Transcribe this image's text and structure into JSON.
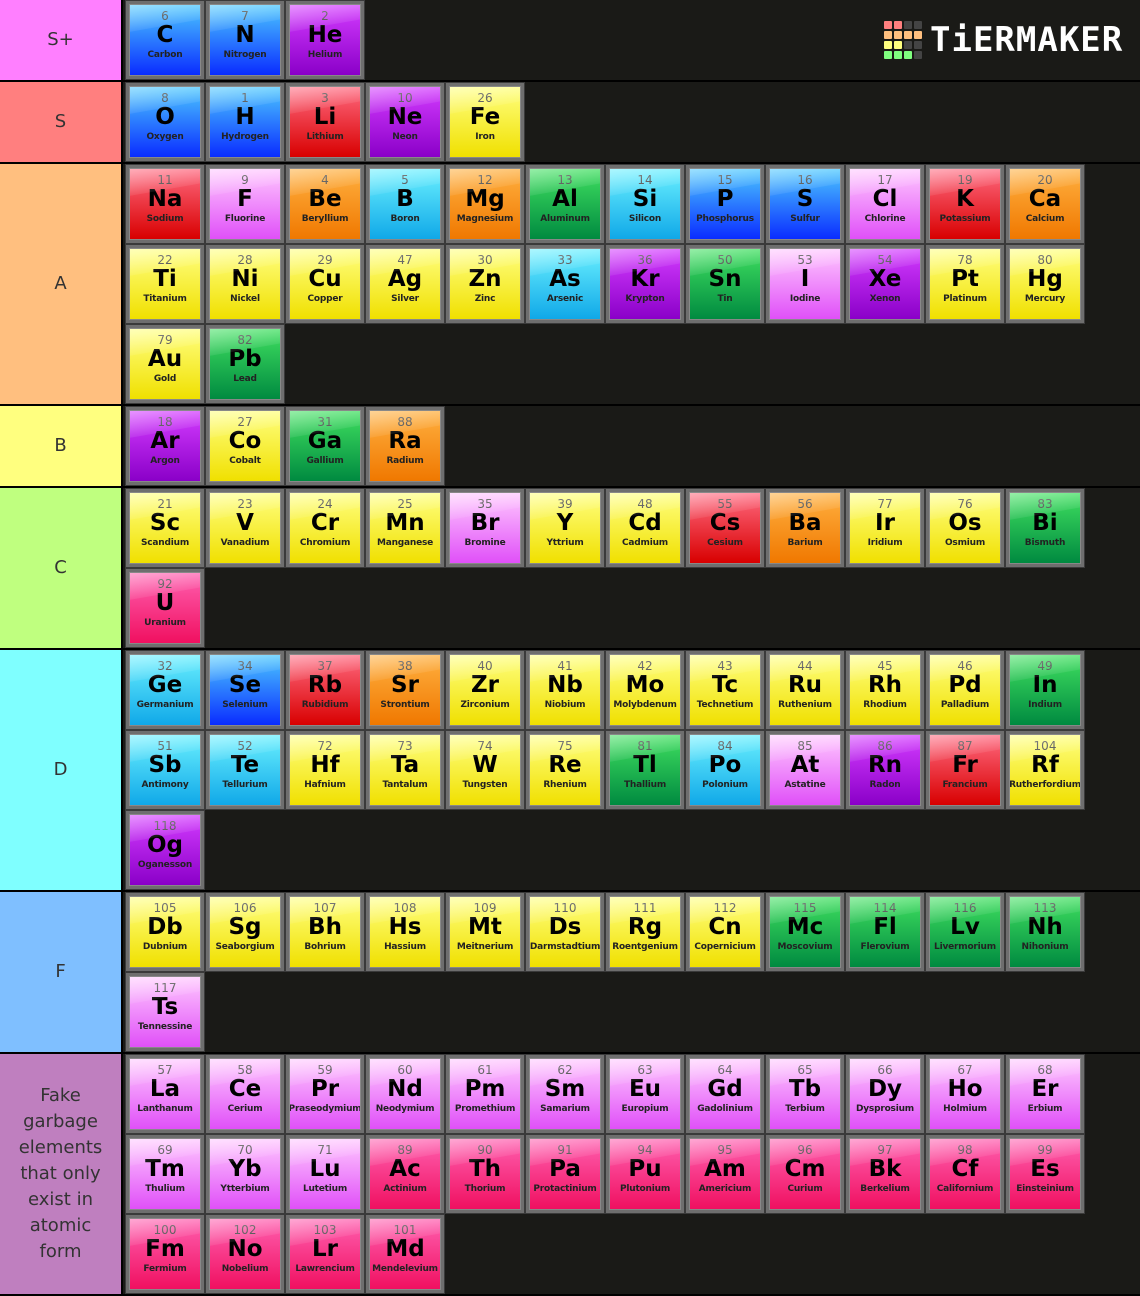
{
  "logo": {
    "text": "TiERMAKER",
    "grid_colors": [
      "#ff7f7f",
      "#ff7f7f",
      "#444",
      "#444",
      "#ffbf7f",
      "#ffbf7f",
      "#ffbf7f",
      "#ffbf7f",
      "#ffff7f",
      "#ffff7f",
      "#444",
      "#444",
      "#7fff7f",
      "#7fff7f",
      "#7fff7f",
      "#444"
    ]
  },
  "colors": {
    "blue": [
      "#4cc8ff",
      "#0a2cff"
    ],
    "purple": [
      "#d43cff",
      "#8a00c8"
    ],
    "red": [
      "#ff6a80",
      "#d80000"
    ],
    "yellow": [
      "#ffff80",
      "#f0e000"
    ],
    "orange": [
      "#ffb040",
      "#f07800"
    ],
    "cyan": [
      "#6af0ff",
      "#10a8e8"
    ],
    "green": [
      "#40e060",
      "#008a40"
    ],
    "pink": [
      "#ffc8ff",
      "#e050f8"
    ],
    "hot": [
      "#ff60b0",
      "#f01060"
    ]
  },
  "tiers": [
    {
      "label": "S+",
      "color": "#ff7fff",
      "elements": [
        [
          "6",
          "C",
          "Carbon",
          "blue"
        ],
        [
          "7",
          "N",
          "Nitrogen",
          "blue"
        ],
        [
          "2",
          "He",
          "Helium",
          "purple"
        ]
      ]
    },
    {
      "label": "S",
      "color": "#ff7f7f",
      "elements": [
        [
          "8",
          "O",
          "Oxygen",
          "blue"
        ],
        [
          "1",
          "H",
          "Hydrogen",
          "blue"
        ],
        [
          "3",
          "Li",
          "Lithium",
          "red"
        ],
        [
          "10",
          "Ne",
          "Neon",
          "purple"
        ],
        [
          "26",
          "Fe",
          "Iron",
          "yellow"
        ]
      ]
    },
    {
      "label": "A",
      "color": "#ffbf7f",
      "elements": [
        [
          "11",
          "Na",
          "Sodium",
          "red"
        ],
        [
          "9",
          "F",
          "Fluorine",
          "pink"
        ],
        [
          "4",
          "Be",
          "Beryllium",
          "orange"
        ],
        [
          "5",
          "B",
          "Boron",
          "cyan"
        ],
        [
          "12",
          "Mg",
          "Magnesium",
          "orange"
        ],
        [
          "13",
          "Al",
          "Aluminum",
          "green"
        ],
        [
          "14",
          "Si",
          "Silicon",
          "cyan"
        ],
        [
          "15",
          "P",
          "Phosphorus",
          "blue"
        ],
        [
          "16",
          "S",
          "Sulfur",
          "blue"
        ],
        [
          "17",
          "Cl",
          "Chlorine",
          "pink"
        ],
        [
          "19",
          "K",
          "Potassium",
          "red"
        ],
        [
          "20",
          "Ca",
          "Calcium",
          "orange"
        ],
        [
          "22",
          "Ti",
          "Titanium",
          "yellow"
        ],
        [
          "28",
          "Ni",
          "Nickel",
          "yellow"
        ],
        [
          "29",
          "Cu",
          "Copper",
          "yellow"
        ],
        [
          "47",
          "Ag",
          "Silver",
          "yellow"
        ],
        [
          "30",
          "Zn",
          "Zinc",
          "yellow"
        ],
        [
          "33",
          "As",
          "Arsenic",
          "cyan"
        ],
        [
          "36",
          "Kr",
          "Krypton",
          "purple"
        ],
        [
          "50",
          "Sn",
          "Tin",
          "green"
        ],
        [
          "53",
          "I",
          "Iodine",
          "pink"
        ],
        [
          "54",
          "Xe",
          "Xenon",
          "purple"
        ],
        [
          "78",
          "Pt",
          "Platinum",
          "yellow"
        ],
        [
          "80",
          "Hg",
          "Mercury",
          "yellow"
        ],
        [
          "79",
          "Au",
          "Gold",
          "yellow"
        ],
        [
          "82",
          "Pb",
          "Lead",
          "green"
        ]
      ]
    },
    {
      "label": "B",
      "color": "#ffff7f",
      "elements": [
        [
          "18",
          "Ar",
          "Argon",
          "purple"
        ],
        [
          "27",
          "Co",
          "Cobalt",
          "yellow"
        ],
        [
          "31",
          "Ga",
          "Gallium",
          "green"
        ],
        [
          "88",
          "Ra",
          "Radium",
          "orange"
        ]
      ]
    },
    {
      "label": "C",
      "color": "#bfff7f",
      "elements": [
        [
          "21",
          "Sc",
          "Scandium",
          "yellow"
        ],
        [
          "23",
          "V",
          "Vanadium",
          "yellow"
        ],
        [
          "24",
          "Cr",
          "Chromium",
          "yellow"
        ],
        [
          "25",
          "Mn",
          "Manganese",
          "yellow"
        ],
        [
          "35",
          "Br",
          "Bromine",
          "pink"
        ],
        [
          "39",
          "Y",
          "Yttrium",
          "yellow"
        ],
        [
          "48",
          "Cd",
          "Cadmium",
          "yellow"
        ],
        [
          "55",
          "Cs",
          "Cesium",
          "red"
        ],
        [
          "56",
          "Ba",
          "Barium",
          "orange"
        ],
        [
          "77",
          "Ir",
          "Iridium",
          "yellow"
        ],
        [
          "76",
          "Os",
          "Osmium",
          "yellow"
        ],
        [
          "83",
          "Bi",
          "Bismuth",
          "green"
        ],
        [
          "92",
          "U",
          "Uranium",
          "hot"
        ]
      ]
    },
    {
      "label": "D",
      "color": "#7fffff",
      "elements": [
        [
          "32",
          "Ge",
          "Germanium",
          "cyan"
        ],
        [
          "34",
          "Se",
          "Selenium",
          "blue"
        ],
        [
          "37",
          "Rb",
          "Rubidium",
          "red"
        ],
        [
          "38",
          "Sr",
          "Strontium",
          "orange"
        ],
        [
          "40",
          "Zr",
          "Zirconium",
          "yellow"
        ],
        [
          "41",
          "Nb",
          "Niobium",
          "yellow"
        ],
        [
          "42",
          "Mo",
          "Molybdenum",
          "yellow"
        ],
        [
          "43",
          "Tc",
          "Technetium",
          "yellow"
        ],
        [
          "44",
          "Ru",
          "Ruthenium",
          "yellow"
        ],
        [
          "45",
          "Rh",
          "Rhodium",
          "yellow"
        ],
        [
          "46",
          "Pd",
          "Palladium",
          "yellow"
        ],
        [
          "49",
          "In",
          "Indium",
          "green"
        ],
        [
          "51",
          "Sb",
          "Antimony",
          "cyan"
        ],
        [
          "52",
          "Te",
          "Tellurium",
          "cyan"
        ],
        [
          "72",
          "Hf",
          "Hafnium",
          "yellow"
        ],
        [
          "73",
          "Ta",
          "Tantalum",
          "yellow"
        ],
        [
          "74",
          "W",
          "Tungsten",
          "yellow"
        ],
        [
          "75",
          "Re",
          "Rhenium",
          "yellow"
        ],
        [
          "81",
          "Tl",
          "Thallium",
          "green"
        ],
        [
          "84",
          "Po",
          "Polonium",
          "cyan"
        ],
        [
          "85",
          "At",
          "Astatine",
          "pink"
        ],
        [
          "86",
          "Rn",
          "Radon",
          "purple"
        ],
        [
          "87",
          "Fr",
          "Francium",
          "red"
        ],
        [
          "104",
          "Rf",
          "Rutherfordium",
          "yellow"
        ],
        [
          "118",
          "Og",
          "Oganesson",
          "purple"
        ]
      ]
    },
    {
      "label": "F",
      "color": "#7fbfff",
      "elements": [
        [
          "105",
          "Db",
          "Dubnium",
          "yellow"
        ],
        [
          "106",
          "Sg",
          "Seaborgium",
          "yellow"
        ],
        [
          "107",
          "Bh",
          "Bohrium",
          "yellow"
        ],
        [
          "108",
          "Hs",
          "Hassium",
          "yellow"
        ],
        [
          "109",
          "Mt",
          "Meitnerium",
          "yellow"
        ],
        [
          "110",
          "Ds",
          "Darmstadtium",
          "yellow"
        ],
        [
          "111",
          "Rg",
          "Roentgenium",
          "yellow"
        ],
        [
          "112",
          "Cn",
          "Copernicium",
          "yellow"
        ],
        [
          "115",
          "Mc",
          "Moscovium",
          "green"
        ],
        [
          "114",
          "Fl",
          "Flerovium",
          "green"
        ],
        [
          "116",
          "Lv",
          "Livermorium",
          "green"
        ],
        [
          "113",
          "Nh",
          "Nihonium",
          "green"
        ],
        [
          "117",
          "Ts",
          "Tennessine",
          "pink"
        ]
      ]
    },
    {
      "label": "Fake garbage elements that only exist in atomic form",
      "color": "#bf7fbf",
      "elements": [
        [
          "57",
          "La",
          "Lanthanum",
          "pink"
        ],
        [
          "58",
          "Ce",
          "Cerium",
          "pink"
        ],
        [
          "59",
          "Pr",
          "Praseodymium",
          "pink"
        ],
        [
          "60",
          "Nd",
          "Neodymium",
          "pink"
        ],
        [
          "61",
          "Pm",
          "Promethium",
          "pink"
        ],
        [
          "62",
          "Sm",
          "Samarium",
          "pink"
        ],
        [
          "63",
          "Eu",
          "Europium",
          "pink"
        ],
        [
          "64",
          "Gd",
          "Gadolinium",
          "pink"
        ],
        [
          "65",
          "Tb",
          "Terbium",
          "pink"
        ],
        [
          "66",
          "Dy",
          "Dysprosium",
          "pink"
        ],
        [
          "67",
          "Ho",
          "Holmium",
          "pink"
        ],
        [
          "68",
          "Er",
          "Erbium",
          "pink"
        ],
        [
          "69",
          "Tm",
          "Thulium",
          "pink"
        ],
        [
          "70",
          "Yb",
          "Ytterbium",
          "pink"
        ],
        [
          "71",
          "Lu",
          "Lutetium",
          "pink"
        ],
        [
          "89",
          "Ac",
          "Actinium",
          "hot"
        ],
        [
          "90",
          "Th",
          "Thorium",
          "hot"
        ],
        [
          "91",
          "Pa",
          "Protactinium",
          "hot"
        ],
        [
          "94",
          "Pu",
          "Plutonium",
          "hot"
        ],
        [
          "95",
          "Am",
          "Americium",
          "hot"
        ],
        [
          "96",
          "Cm",
          "Curium",
          "hot"
        ],
        [
          "97",
          "Bk",
          "Berkelium",
          "hot"
        ],
        [
          "98",
          "Cf",
          "Californium",
          "hot"
        ],
        [
          "99",
          "Es",
          "Einsteinium",
          "hot"
        ],
        [
          "100",
          "Fm",
          "Fermium",
          "hot"
        ],
        [
          "102",
          "No",
          "Nobelium",
          "hot"
        ],
        [
          "103",
          "Lr",
          "Lawrencium",
          "hot"
        ],
        [
          "101",
          "Md",
          "Mendelevium",
          "hot"
        ]
      ]
    }
  ]
}
